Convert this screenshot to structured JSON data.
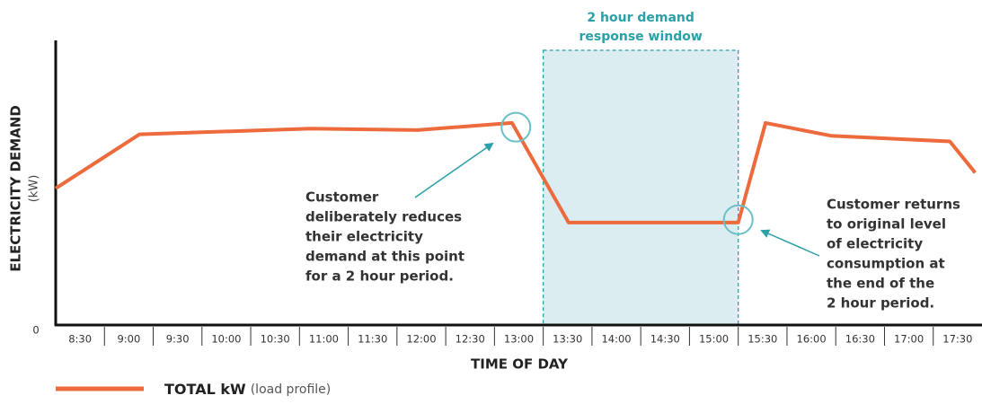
{
  "chart_data": {
    "type": "line",
    "y_label": "ELECTRICITY DEMAND",
    "y_unit": "(kW)",
    "x_label": "TIME OF DAY",
    "xlim": [
      8.25,
      17.75
    ],
    "xticks": [
      {
        "value": 8.5,
        "label": "8:30"
      },
      {
        "value": 9,
        "label": "9:00"
      },
      {
        "value": 9.5,
        "label": "9:30"
      },
      {
        "value": 10,
        "label": "10:00"
      },
      {
        "value": 10.5,
        "label": "10:30"
      },
      {
        "value": 11,
        "label": "11:00"
      },
      {
        "value": 11.5,
        "label": "11:30"
      },
      {
        "value": 12,
        "label": "12:00"
      },
      {
        "value": 12.5,
        "label": "12:30"
      },
      {
        "value": 13,
        "label": "13:00"
      },
      {
        "value": 13.5,
        "label": "13:30"
      },
      {
        "value": 14,
        "label": "14:00"
      },
      {
        "value": 14.5,
        "label": "14:30"
      },
      {
        "value": 15,
        "label": "15:00"
      },
      {
        "value": 15.5,
        "label": "15:30"
      },
      {
        "value": 16,
        "label": "16:00"
      },
      {
        "value": 16.5,
        "label": "16:30"
      },
      {
        "value": 17,
        "label": "17:00"
      },
      {
        "value": 17.5,
        "label": "17:30"
      }
    ],
    "ylim": [
      0,
      100
    ],
    "yticks": [
      0
    ],
    "series": [
      {
        "name": "TOTAL kW",
        "name_note": "(load profile)",
        "color": "#ec6a3c",
        "x": [
          8.25,
          9.11,
          10.86,
          11.96,
          12.93,
          13.51,
          15.25,
          15.53,
          16.2,
          17.42,
          17.68
        ],
        "values": [
          48,
          67,
          69,
          68.5,
          71,
          36,
          36,
          71,
          66.5,
          64.5,
          53.5
        ]
      }
    ],
    "window": {
      "label": [
        "2 hour demand",
        "response window"
      ],
      "x": [
        13.25,
        15.25
      ],
      "color": "#2aa0a8"
    },
    "annotations": [
      {
        "lines": [
          "Customer",
          "deliberately reduces",
          "their electricity",
          "demand at this point",
          "for a 2 hour period."
        ],
        "x": 12.97,
        "y": 69.5
      },
      {
        "lines": [
          "Customer returns",
          "to original level",
          "of electricity",
          "consumption at",
          "the end of the",
          "2 hour period."
        ],
        "x": 15.25,
        "y": 37
      }
    ]
  }
}
